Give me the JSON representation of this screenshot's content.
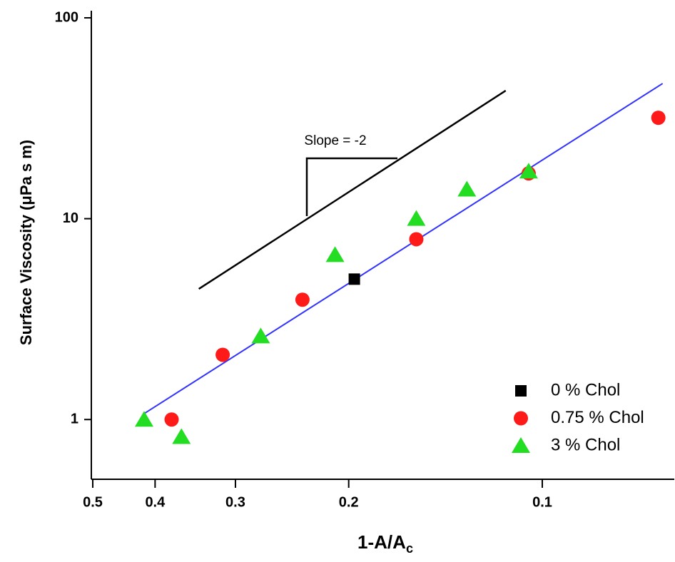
{
  "chart_data": {
    "type": "scatter",
    "x_label": {
      "text": "1-A/A",
      "subscript": "c"
    },
    "y_label": "Surface Viscosity (μPa s m)",
    "x_log": true,
    "y_log": true,
    "xlim": [
      0.5,
      0.0625
    ],
    "ylim": [
      0.5,
      100
    ],
    "xticks": [
      0.5,
      0.4,
      0.3,
      0.2,
      0.1
    ],
    "yticks": [
      1,
      10,
      100
    ],
    "legend": "lower right",
    "series": [
      {
        "name": "0 % Chol",
        "color": "#000000",
        "marker": "square",
        "x": [
          0.196
        ],
        "values": [
          5.0
        ]
      },
      {
        "name": "0.75 % Chol",
        "color": "#ff1a1a",
        "marker": "circle",
        "x": [
          0.377,
          0.314,
          0.236,
          0.157,
          0.105,
          0.066
        ],
        "values": [
          1.0,
          2.1,
          3.95,
          7.9,
          16.8,
          31.8
        ]
      },
      {
        "name": "3 % Chol",
        "color": "#22dd22",
        "marker": "triangle",
        "x": [
          0.416,
          0.364,
          0.274,
          0.21,
          0.157,
          0.131,
          0.105
        ],
        "values": [
          1.0,
          0.82,
          2.6,
          6.6,
          10.0,
          14.0,
          17.2
        ]
      }
    ],
    "fit_line": {
      "color": "#3333ff",
      "x": [
        0.416,
        0.065
      ],
      "values": [
        1.07,
        47.1
      ]
    },
    "slope_guide": {
      "color": "#000000",
      "label": "Slope = -2",
      "x": [
        0.342,
        0.114
      ],
      "values": [
        4.47,
        43.4
      ]
    }
  }
}
